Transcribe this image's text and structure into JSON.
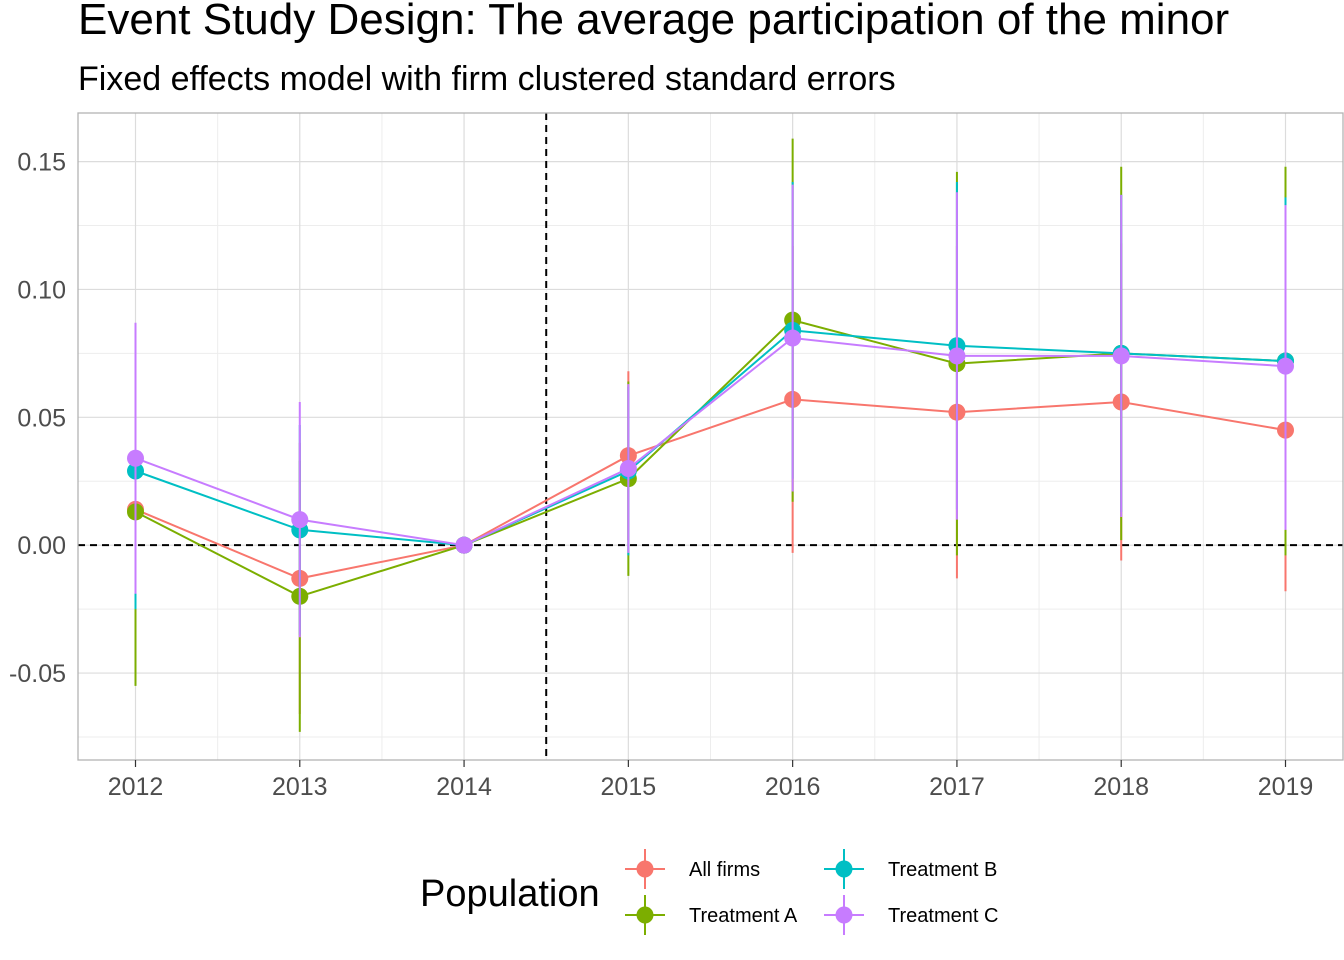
{
  "chart_data": {
    "type": "line",
    "title": "Event Study Design: The average participation of the minor",
    "subtitle": "Fixed effects model with firm clustered standard errors",
    "xlabel": "",
    "ylabel": "",
    "x": [
      2012,
      2013,
      2014,
      2015,
      2016,
      2017,
      2018,
      2019
    ],
    "x_tick_labels": [
      "2012",
      "2013",
      "2014",
      "2015",
      "2016",
      "2017",
      "2018",
      "2019"
    ],
    "y_ticks": [
      -0.05,
      0.0,
      0.05,
      0.1,
      0.15
    ],
    "y_tick_labels": [
      "-0.05",
      "0.00",
      "0.05",
      "0.10",
      "0.15"
    ],
    "xlim": [
      2011.65,
      2019.35
    ],
    "ylim": [
      -0.084,
      0.169
    ],
    "grid": true,
    "reference_lines": {
      "vertical_x": 2014.5,
      "horizontal_y": 0.0
    },
    "legend": {
      "title": "Population",
      "position": "bottom"
    },
    "series": [
      {
        "name": "All firms",
        "color": "#F8766D",
        "values": [
          0.014,
          -0.013,
          0.0,
          0.035,
          0.057,
          0.052,
          0.056,
          0.045
        ],
        "lower": [
          -0.048,
          -0.066,
          0.0,
          0.002,
          -0.003,
          -0.013,
          -0.006,
          -0.018
        ],
        "upper": [
          0.076,
          0.04,
          0.0,
          0.068,
          0.117,
          0.117,
          0.118,
          0.108
        ]
      },
      {
        "name": "Treatment A",
        "color": "#7CAE00",
        "values": [
          0.013,
          -0.02,
          0.0,
          0.026,
          0.088,
          0.071,
          0.075,
          0.072
        ],
        "lower": [
          -0.055,
          -0.073,
          0.0,
          -0.012,
          0.017,
          -0.004,
          0.002,
          -0.004
        ],
        "upper": [
          0.081,
          0.033,
          0.0,
          0.064,
          0.159,
          0.146,
          0.148,
          0.148
        ]
      },
      {
        "name": "Treatment B",
        "color": "#00BFC4",
        "values": [
          0.029,
          0.006,
          0.0,
          0.029,
          0.084,
          0.078,
          0.075,
          0.072
        ],
        "lower": [
          -0.025,
          -0.035,
          0.0,
          -0.004,
          0.026,
          0.014,
          0.013,
          0.008
        ],
        "upper": [
          0.083,
          0.047,
          0.0,
          0.062,
          0.142,
          0.142,
          0.137,
          0.136
        ]
      },
      {
        "name": "Treatment C",
        "color": "#C77CFF",
        "values": [
          0.034,
          0.01,
          0.0,
          0.03,
          0.081,
          0.074,
          0.074,
          0.07
        ],
        "lower": [
          -0.019,
          -0.036,
          0.0,
          -0.003,
          0.021,
          0.01,
          0.011,
          0.006
        ],
        "upper": [
          0.087,
          0.056,
          0.0,
          0.063,
          0.141,
          0.138,
          0.137,
          0.133
        ]
      }
    ]
  }
}
